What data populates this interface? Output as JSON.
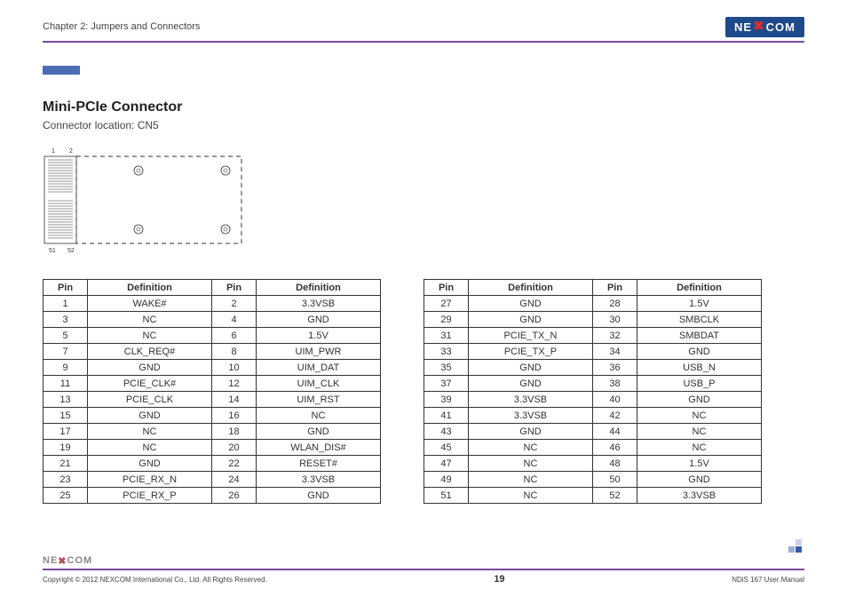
{
  "header": {
    "chapter": "Chapter 2: Jumpers and Connectors",
    "logo_text_pre": "NE",
    "logo_x": "✖",
    "logo_text_post": "COM"
  },
  "section": {
    "title": "Mini-PCIe Connector",
    "subtitle": "Connector location: CN5"
  },
  "diagram": {
    "label_1": "1",
    "label_2": "2",
    "label_51": "51",
    "label_52": "52"
  },
  "table_headers": {
    "pin": "Pin",
    "definition": "Definition"
  },
  "table1": [
    {
      "p1": "1",
      "d1": "WAKE#",
      "p2": "2",
      "d2": "3.3VSB"
    },
    {
      "p1": "3",
      "d1": "NC",
      "p2": "4",
      "d2": "GND"
    },
    {
      "p1": "5",
      "d1": "NC",
      "p2": "6",
      "d2": "1.5V"
    },
    {
      "p1": "7",
      "d1": "CLK_REQ#",
      "p2": "8",
      "d2": "UIM_PWR"
    },
    {
      "p1": "9",
      "d1": "GND",
      "p2": "10",
      "d2": "UIM_DAT"
    },
    {
      "p1": "11",
      "d1": "PCIE_CLK#",
      "p2": "12",
      "d2": "UIM_CLK"
    },
    {
      "p1": "13",
      "d1": "PCIE_CLK",
      "p2": "14",
      "d2": "UIM_RST"
    },
    {
      "p1": "15",
      "d1": "GND",
      "p2": "16",
      "d2": "NC"
    },
    {
      "p1": "17",
      "d1": "NC",
      "p2": "18",
      "d2": "GND"
    },
    {
      "p1": "19",
      "d1": "NC",
      "p2": "20",
      "d2": "WLAN_DIS#"
    },
    {
      "p1": "21",
      "d1": "GND",
      "p2": "22",
      "d2": "RESET#"
    },
    {
      "p1": "23",
      "d1": "PCIE_RX_N",
      "p2": "24",
      "d2": "3.3VSB"
    },
    {
      "p1": "25",
      "d1": "PCIE_RX_P",
      "p2": "26",
      "d2": "GND"
    }
  ],
  "table2": [
    {
      "p1": "27",
      "d1": "GND",
      "p2": "28",
      "d2": "1.5V"
    },
    {
      "p1": "29",
      "d1": "GND",
      "p2": "30",
      "d2": "SMBCLK"
    },
    {
      "p1": "31",
      "d1": "PCIE_TX_N",
      "p2": "32",
      "d2": "SMBDAT"
    },
    {
      "p1": "33",
      "d1": "PCIE_TX_P",
      "p2": "34",
      "d2": "GND"
    },
    {
      "p1": "35",
      "d1": "GND",
      "p2": "36",
      "d2": "USB_N"
    },
    {
      "p1": "37",
      "d1": "GND",
      "p2": "38",
      "d2": "USB_P"
    },
    {
      "p1": "39",
      "d1": "3.3VSB",
      "p2": "40",
      "d2": "GND"
    },
    {
      "p1": "41",
      "d1": "3.3VSB",
      "p2": "42",
      "d2": "NC"
    },
    {
      "p1": "43",
      "d1": "GND",
      "p2": "44",
      "d2": "NC"
    },
    {
      "p1": "45",
      "d1": "NC",
      "p2": "46",
      "d2": "NC"
    },
    {
      "p1": "47",
      "d1": "NC",
      "p2": "48",
      "d2": "1.5V"
    },
    {
      "p1": "49",
      "d1": "NC",
      "p2": "50",
      "d2": "GND"
    },
    {
      "p1": "51",
      "d1": "NC",
      "p2": "52",
      "d2": "3.3VSB"
    }
  ],
  "footer": {
    "copyright": "Copyright © 2012 NEXCOM International Co., Ltd. All Rights Reserved.",
    "page": "19",
    "manual": "NDiS 167 User Manual"
  },
  "colors": {
    "purple": "#7a4a9c",
    "blue": "#4a6db5",
    "logo_bg": "#1e4a8c",
    "logo_x": "#d03030",
    "text": "#333333",
    "border": "#333333"
  }
}
